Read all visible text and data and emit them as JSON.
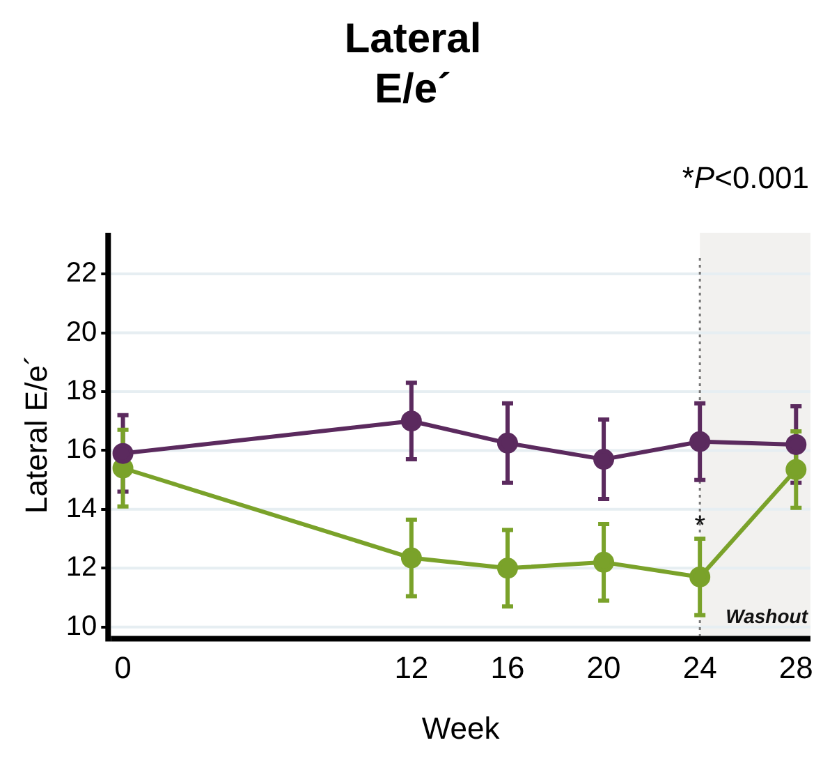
{
  "chart_data": {
    "type": "line",
    "title": "Lateral E/e´",
    "xlabel": "Week",
    "ylabel": "Lateral E/e´",
    "x": [
      0,
      12,
      16,
      20,
      24,
      28
    ],
    "series": [
      {
        "color": "#5b2a5e",
        "values": [
          15.9,
          17.0,
          16.25,
          15.7,
          16.3,
          16.2
        ],
        "errors": [
          1.3,
          1.3,
          1.35,
          1.35,
          1.3,
          1.3
        ]
      },
      {
        "color": "#7aa22a",
        "values": [
          15.4,
          12.35,
          12.0,
          12.2,
          11.7,
          15.35
        ],
        "errors": [
          1.3,
          1.3,
          1.3,
          1.3,
          1.3,
          1.3
        ]
      }
    ],
    "xlim": [
      -0.5,
      28.6
    ],
    "xticks": [
      0,
      12,
      16,
      20,
      24,
      28
    ],
    "ylim": [
      9.7,
      23.4
    ],
    "yticks": [
      10,
      12,
      14,
      16,
      18,
      20,
      22
    ],
    "grid": "y",
    "legend": false,
    "marker": "circle",
    "line_style": "solid",
    "bands": [
      {
        "axis": "x",
        "from": 24,
        "to": 28.6,
        "label": "Washout",
        "color": "#f2f1ef"
      }
    ],
    "ref_lines": [
      {
        "axis": "x",
        "value": 24,
        "label": null,
        "line_style": "dotted",
        "color": "#777777"
      }
    ],
    "annotations": [
      {
        "text": "*",
        "x": 24,
        "y": 13.4
      },
      "*P<0.001"
    ]
  }
}
